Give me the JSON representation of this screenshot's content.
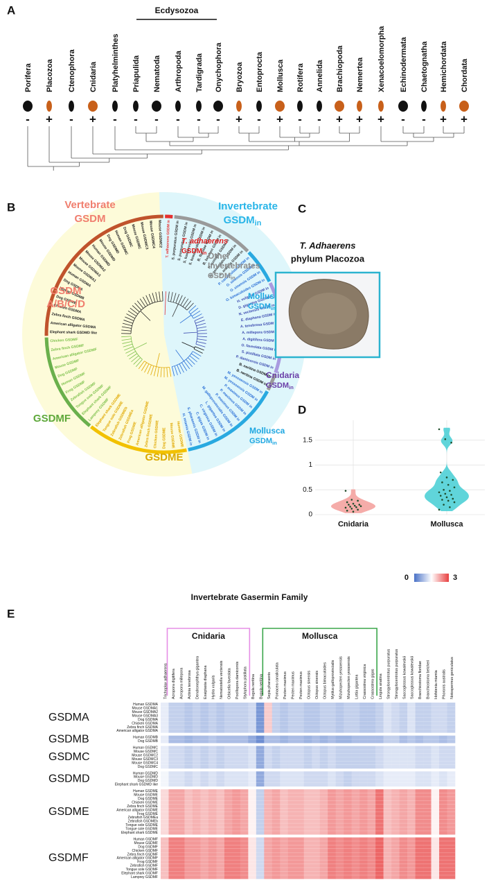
{
  "panel_labels": [
    "A",
    "B",
    "C",
    "D",
    "E"
  ],
  "panel_a": {
    "group_label": "Ecdysozoa",
    "phyla": [
      {
        "name": "Porifera",
        "sign": "-"
      },
      {
        "name": "Placozoa",
        "sign": "+"
      },
      {
        "name": "Ctenophora",
        "sign": "-"
      },
      {
        "name": "Cnidaria",
        "sign": "+"
      },
      {
        "name": "Platyhelminthes",
        "sign": "-"
      },
      {
        "name": "Priapulida",
        "sign": "-"
      },
      {
        "name": "Nematoda",
        "sign": "-"
      },
      {
        "name": "Arthropoda",
        "sign": "-"
      },
      {
        "name": "Tardigrada",
        "sign": "-"
      },
      {
        "name": "Onychophora",
        "sign": "-"
      },
      {
        "name": "Bryozoa",
        "sign": "+"
      },
      {
        "name": "Entoprocta",
        "sign": "-"
      },
      {
        "name": "Mollusca",
        "sign": "+"
      },
      {
        "name": "Rotifera",
        "sign": "-"
      },
      {
        "name": "Annelida",
        "sign": "-"
      },
      {
        "name": "Brachiopoda",
        "sign": "+"
      },
      {
        "name": "Nemertea",
        "sign": "+"
      },
      {
        "name": "Xenacoelomorpha",
        "sign": "+"
      },
      {
        "name": "Echinodermata",
        "sign": "-"
      },
      {
        "name": "Chaetognatha",
        "sign": "-"
      },
      {
        "name": "Hemichordata",
        "sign": "+"
      },
      {
        "name": "Chordata",
        "sign": "+"
      }
    ]
  },
  "panel_b": {
    "vertebrate_title": [
      "Vertebrate",
      "GSDM"
    ],
    "invertebrate_title": [
      "Invertebrate",
      "GSDM",
      "in"
    ],
    "clades": [
      {
        "label_lines": [
          "T. adhaerens"
        ],
        "sub_label": [
          "GSDM",
          "in"
        ],
        "ring_color": "#e53030",
        "text_color": "#e02020",
        "leaf_color": "#e53030",
        "leaves": [
          "T. adhaerens GSDM in"
        ]
      },
      {
        "label_lines": [
          "Other",
          "Invertebrates"
        ],
        "sub_label": [
          "GSDM",
          "in"
        ],
        "ring_color": "#9a9a9a",
        "text_color": "#8a8a8a",
        "leaf_color": "#333333",
        "leaves": [
          "S. purpuratus GSDM in",
          "S. purpuratus GSDM in",
          "S. kowalevskii GSDM in",
          "S. kowalevskii GSDM in",
          "B. floridae GSDM in",
          "B. belcheri GSDM in",
          "P. australis GSDM in",
          "N. geniculatus GSDM in",
          "L. anatina GSDM in"
        ]
      },
      {
        "label_lines": [
          "Mollusca"
        ],
        "sub_label": [
          "GSDM",
          "in"
        ],
        "ring_color": "#29a9e0",
        "text_color": "#1ea7e1",
        "leaf_color": "#2a6fd6",
        "leaves": [
          "P. canaliculata GSDM in",
          "O. sinensis GSDM in",
          "O. sinensis GSDM in",
          "O. bimaculoides GSDM in"
        ]
      },
      {
        "label_lines": [
          "Cnidaria"
        ],
        "sub_label": [
          "GSDM",
          "in"
        ],
        "ring_color": "#a99be0",
        "text_color": "#6a3fa8",
        "leaf_color": "#3b4bb0",
        "leaves": [
          "H. vulgaris GSDM in",
          "D. gigantea GSDM in",
          "N. vectensis GSDM in",
          "E. diaphana GSDM in",
          "A. tenebrosa GSDM in",
          "A. millepora GSDM in",
          "A. digitifera GSDM in",
          "O. faveolata GSDM in",
          "S. pistillata GSDM in",
          "P. damicornis GSDM in"
        ]
      },
      {
        "label_lines": [],
        "ring_color": "#9a9a9a",
        "text_color": "#111111",
        "leaf_color": "#111111",
        "leaves": [
          "B. neritina GSDM in",
          "B. neritina GSDM in"
        ]
      },
      {
        "label_lines": [
          "Mollusca"
        ],
        "sub_label": [
          "GSDM",
          "in"
        ],
        "ring_color": "#29a9e0",
        "text_color": "#1ea7e1",
        "leaf_color": "#2a6fd6",
        "leaves": [
          "M. yessoensis GSDM in",
          "M. yessoensis GSDM in",
          "P. maximus GSDM in",
          "P. maximus GSDM in",
          "P. maximus GSDM in",
          "M. galloprovincialis GSDM in",
          "L. gigantea GSDM in",
          "C. virginica GSDM in",
          "C. gigas GSDM in",
          "S. pharaonis GSDM in",
          "H. miamia GSDM in"
        ]
      },
      {
        "label_lines": [
          "GSDME"
        ],
        "ring_color": "#f2c100",
        "text_color": "#d9a900",
        "leaf_color": "#e0a800",
        "leaves": [
          "Human GSDME",
          "Mouse GSDME",
          "Dog GSDME",
          "Chicken GSDME",
          "Zebra finch GSDME",
          "American alligator GSDME",
          "Frog GSDME",
          "Zebrafish GSDMEa",
          "Zebrafish GSDMEb",
          "Tongue sole GSDME",
          "Elephant shark GSDME"
        ]
      },
      {
        "label_lines": [
          "GSDMF"
        ],
        "ring_color": "#6ab04c",
        "text_color": "#5ea83a",
        "leaf_color": "#7cc04a",
        "leaves": [
          "Lamprey GSDMF",
          "Elephant shark GSDMF",
          "Tongue sole GSDMF",
          "Zebrafish GSDMF",
          "Frog GSDMF",
          "Human GSDMF",
          "Dog GSDMF",
          "Mouse GSDMF",
          "American alligator GSDMF",
          "Zebra finch GSDMF",
          "Chicken GSDMF"
        ]
      },
      {
        "label_lines": [
          "GSDM",
          "A/B/C/D"
        ],
        "ring_color": "#c0532c",
        "text_color": "#f07e6e",
        "leaf_color": "#222222",
        "leaves": [
          "Elephant shark GSDMD like",
          "American alligator GSDMA",
          "Zebra finch GSDMA",
          "Chicken GSDMA",
          "Dog GSDMB",
          "Human GSDMB",
          "Dog GSDMA",
          "Human GSDMA",
          "Mouse GSDMA1",
          "Mouse GSDMA3",
          "Mouse GSDMA2",
          "Human GSDMD",
          "Mouse GSDMD",
          "Dog GSDMD",
          "Human GSDMC",
          "Dog GSDMC",
          "Mouse GSDMC",
          "Mouse GSDMC3",
          "Mouse GSDMC4",
          "Mouse GSDMC2"
        ]
      }
    ]
  },
  "panel_c": {
    "title": "T. Adhaerens",
    "subtitle": "phylum Placozoa"
  },
  "chart_data": [
    {
      "type": "violin",
      "categories": [
        "Cnidaria",
        "Mollusca"
      ],
      "colors": [
        "#f4a3a0",
        "#4fd0d6"
      ],
      "values": [
        [
          0.48,
          0.3,
          0.28,
          0.25,
          0.22,
          0.2,
          0.2,
          0.18,
          0.17,
          0.16,
          0.15,
          0.14,
          0.12,
          0.1,
          0.08,
          0.06
        ],
        [
          1.72,
          1.52,
          1.45,
          0.85,
          0.75,
          0.7,
          0.65,
          0.6,
          0.55,
          0.5,
          0.48,
          0.45,
          0.42,
          0.4,
          0.38,
          0.35,
          0.32,
          0.3,
          0.28,
          0.25,
          0.2,
          0.15,
          0.1
        ]
      ],
      "ylim": [
        0,
        1.9
      ],
      "yticks": [
        0,
        0.5,
        1,
        1.5
      ],
      "grid": true
    },
    {
      "type": "heatmap",
      "title": "Invertebrate Gasermin Family",
      "zlim": [
        0,
        3
      ],
      "colorbar_ticks": [
        0,
        3
      ],
      "column_groups": [
        "Cnidaria",
        "Mollusca"
      ],
      "columns": [
        "Trichoplax adhaerens",
        "Acropora digitifera",
        "Acropora millepora",
        "Actinia tenebrosa",
        "Dendronephthya gigantea",
        "Exaiptasia diaphana",
        "Hydra vulgaris",
        "Nematostella vectensis",
        "Orbicella faveolata",
        "Pocillopora damicornis",
        "Stylophora pistillata",
        "Bugula neritina",
        "Bugula neritina",
        "Sepia pharaonis",
        "Pomacea canaliculata",
        "Pecten maximus",
        "Pecten maximus",
        "Pecten maximus",
        "Octopus sinensis",
        "Octopus sinensis",
        "Octopus bimaculoides",
        "Mytilus galloprovincialis",
        "Mizuhopecten yessoensis",
        "Mizuhopecten yessoensis",
        "Lottia gigantea",
        "Crassostrea virginica",
        "Crassostrea gigas",
        "Lingula anatina",
        "Strongylocentrotus purpuratus",
        "Strongylocentrotus purpuratus",
        "Saccoglossus kowalevskii",
        "Saccoglossus kowalevskii",
        "Branchiostoma floridae",
        "Branchiostoma belcheri",
        "Hofstenia miamia",
        "Phoronis australis",
        "Notospermus geniculatus"
      ],
      "row_groups": [
        {
          "name": "GSDMA",
          "rows": [
            "Human GSDMA",
            "Mouse GSDMA1",
            "Mouse GSDMA2",
            "Mouse GSDMA3",
            "Dog GSDMA",
            "Chicken GSDMA",
            "Zebra finch GSDMA",
            "American alligator GSDMA"
          ],
          "values": [
            1.3,
            1.0,
            1.0,
            0.9,
            1.0,
            0.9,
            1.0,
            0.9,
            1.0,
            1.0,
            1.0,
            1.1,
            0.4,
            1.9,
            1.0,
            0.9,
            1.0,
            1.0,
            0.9,
            0.9,
            1.0,
            1.0,
            0.9,
            1.0,
            1.0,
            0.9,
            0.9,
            1.0,
            1.2,
            1.1,
            1.0,
            1.2,
            1.0,
            1.0,
            1.1,
            1.1,
            1.0
          ]
        },
        {
          "name": "GSDMB",
          "rows": [
            "Human GSDMB",
            "Dog GSDMB"
          ],
          "values": [
            1.3,
            0.8,
            0.8,
            0.7,
            0.8,
            0.8,
            0.9,
            0.8,
            0.8,
            0.8,
            0.8,
            0.6,
            0.3,
            0.8,
            0.8,
            0.7,
            0.8,
            0.8,
            0.7,
            0.8,
            0.7,
            0.8,
            0.7,
            0.7,
            0.8,
            0.8,
            0.8,
            0.8,
            1.0,
            1.0,
            0.8,
            0.9,
            0.8,
            0.9,
            0.9,
            0.8,
            0.9
          ]
        },
        {
          "name": "GSDMC",
          "rows": [
            "Human GSDMC",
            "Mouse GSDMC",
            "Mouse GSDMC2",
            "Mouse GSDMC3",
            "Mouse GSDMC4",
            "Dog GSDMC"
          ],
          "values": [
            1.3,
            1.1,
            1.1,
            1.0,
            1.1,
            1.0,
            1.1,
            1.0,
            1.1,
            1.1,
            1.1,
            1.2,
            0.6,
            1.1,
            1.0,
            1.1,
            1.1,
            1.1,
            1.0,
            1.1,
            1.0,
            1.1,
            1.0,
            1.0,
            1.0,
            1.0,
            1.0,
            1.1,
            1.2,
            1.2,
            1.2,
            1.2,
            1.1,
            1.1,
            1.2,
            1.1,
            1.1
          ]
        },
        {
          "name": "GSDMD",
          "rows": [
            "Human GSDMD",
            "Mouse GSDMD",
            "Dog GSDMD",
            "Elephant shark GSDMD like"
          ],
          "values": [
            1.4,
            1.2,
            1.2,
            1.1,
            1.2,
            1.1,
            1.2,
            1.1,
            1.2,
            1.2,
            1.2,
            1.3,
            0.6,
            1.1,
            1.1,
            1.2,
            1.2,
            1.2,
            1.1,
            1.1,
            1.1,
            1.2,
            1.1,
            1.0,
            1.1,
            1.1,
            1.1,
            1.2,
            1.3,
            1.3,
            1.3,
            1.3,
            1.2,
            1.2,
            1.3,
            1.2,
            1.3
          ]
        },
        {
          "name": "GSDME",
          "rows": [
            "Human GSDME",
            "Mouse GSDME",
            "Dog GSDME",
            "Chicken GSDME",
            "Zebra finch GSDME",
            "American alligator GSDME",
            "Frog GSDME",
            "Zebrafish GSDMEa",
            "Zebrafish GSDMEb",
            "Tongue sole GSDME",
            "Tongue sole GSDME",
            "Elephant shark GSDME"
          ],
          "values": [
            1.8,
            2.2,
            2.2,
            2.0,
            2.1,
            2.0,
            2.1,
            2.0,
            2.2,
            2.3,
            2.2,
            1.6,
            1.0,
            2.1,
            2.2,
            2.0,
            2.1,
            2.1,
            2.0,
            2.0,
            2.1,
            2.3,
            2.2,
            2.3,
            2.2,
            2.3,
            2.2,
            2.6,
            2.0,
            2.1,
            2.2,
            2.1,
            2.4,
            2.4,
            1.6,
            2.4,
            2.3
          ]
        },
        {
          "name": "GSDMF",
          "rows": [
            "Human GSDMF",
            "Mouse GSDMF",
            "Dog GSDMF",
            "Chicken GSDMF",
            "Zebra finch GSDMF",
            "American alligator GSDMF",
            "Frog GSDMF",
            "Zebrafish GSDMF",
            "Tongue sole GSDMF",
            "Elephant shark GSDMF",
            "Lamprey GSDMF"
          ],
          "values": [
            2.0,
            2.5,
            2.5,
            2.3,
            2.3,
            2.2,
            2.3,
            2.2,
            2.5,
            2.5,
            2.4,
            1.7,
            1.1,
            2.2,
            2.3,
            2.2,
            2.3,
            2.3,
            2.1,
            2.1,
            2.2,
            2.5,
            2.4,
            2.5,
            2.4,
            2.5,
            2.4,
            2.7,
            2.1,
            2.2,
            2.4,
            2.3,
            2.6,
            2.6,
            1.7,
            2.6,
            2.6
          ]
        }
      ]
    }
  ]
}
